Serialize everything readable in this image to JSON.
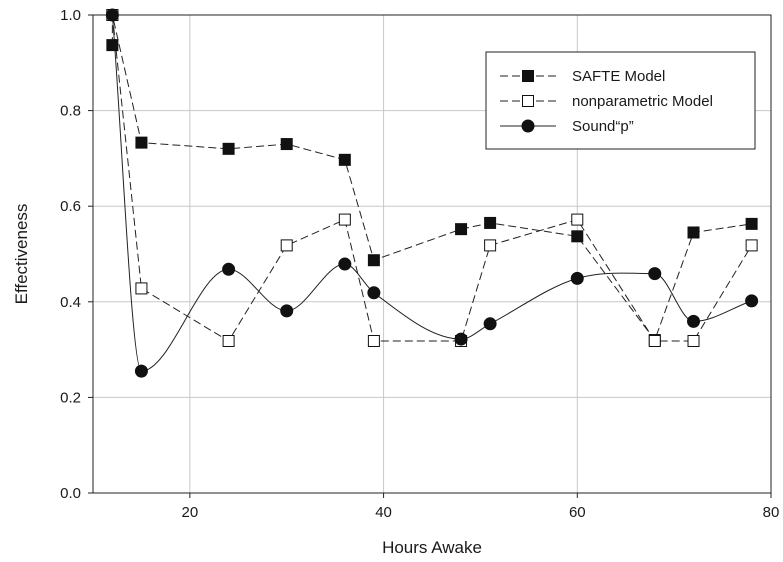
{
  "chart_data": {
    "type": "line",
    "xlabel": "Hours Awake",
    "ylabel": "Effectiveness",
    "xlim": [
      10,
      80
    ],
    "ylim": [
      0.0,
      1.0
    ],
    "x_ticks": [
      20,
      40,
      60,
      80
    ],
    "y_ticks": [
      0.0,
      0.2,
      0.4,
      0.6,
      0.8,
      1.0
    ],
    "x_tick_labels": [
      "20",
      "40",
      "60",
      "80"
    ],
    "y_tick_labels": [
      "0.0",
      "0.2",
      "0.4",
      "0.6",
      "0.8",
      "1.0"
    ],
    "grid": true,
    "legend_position": "top-right",
    "series": [
      {
        "name": "SAFTE Model",
        "marker": "filled-square",
        "line_style": "dashed",
        "smooth": false,
        "x": [
          12,
          12,
          15,
          24,
          30,
          36,
          39,
          48,
          51,
          60,
          68,
          72,
          78
        ],
        "y": [
          0.937,
          1.0,
          0.733,
          0.72,
          0.73,
          0.697,
          0.487,
          0.552,
          0.565,
          0.537,
          0.32,
          0.545,
          0.563
        ]
      },
      {
        "name": "nonparametric Model",
        "marker": "open-square",
        "line_style": "dashed",
        "smooth": false,
        "x": [
          12,
          15,
          24,
          30,
          36,
          39,
          48,
          51,
          60,
          68,
          72,
          78
        ],
        "y": [
          1.0,
          0.428,
          0.318,
          0.518,
          0.572,
          0.318,
          0.318,
          0.518,
          0.572,
          0.318,
          0.318,
          0.518
        ]
      },
      {
        "name": "Sound“p”",
        "marker": "filled-circle",
        "line_style": "solid",
        "smooth": true,
        "x": [
          12,
          15,
          24,
          30,
          36,
          39,
          48,
          51,
          60,
          68,
          72,
          78
        ],
        "y": [
          1.0,
          0.255,
          0.468,
          0.381,
          0.479,
          0.419,
          0.322,
          0.354,
          0.449,
          0.459,
          0.359,
          0.402
        ]
      }
    ]
  }
}
